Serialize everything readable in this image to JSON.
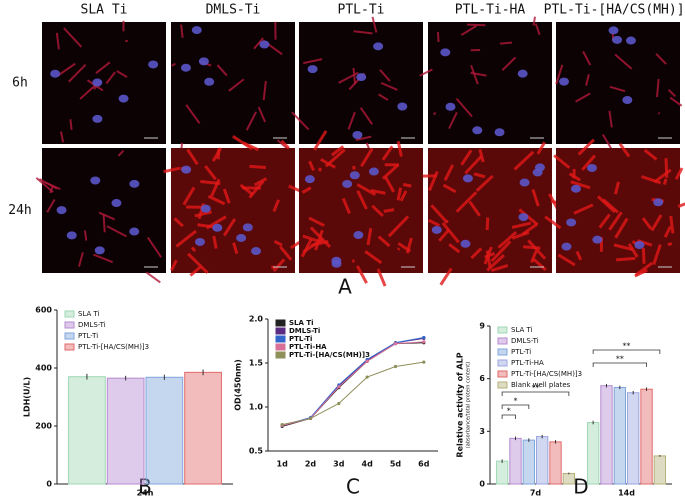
{
  "panel_a": {
    "label": "A",
    "columns": [
      "SLA Ti",
      "DMLS-Ti",
      "PTL-Ti",
      "PTL-Ti-HA",
      "PTL-Ti-[HA/CS(MH)]3"
    ],
    "rows": [
      "6h",
      "24h"
    ]
  },
  "chart_data": [
    {
      "type": "bar",
      "panel": "B",
      "ylabel": "LDH(U/L)",
      "categories": [
        "24h"
      ],
      "ylim": [
        0,
        600
      ],
      "yticks": [
        0,
        200,
        400,
        600
      ],
      "legend": "top-left",
      "series": [
        {
          "name": "SLA Ti",
          "color": "#9fd8b4",
          "values": [
            370
          ],
          "errors": [
            10
          ]
        },
        {
          "name": "DMLS-Ti",
          "color": "#b68ad0",
          "values": [
            365
          ],
          "errors": [
            8
          ]
        },
        {
          "name": "PTL-Ti",
          "color": "#7fa6dc",
          "values": [
            368
          ],
          "errors": [
            9
          ]
        },
        {
          "name": "PTL-Ti-[HA/CS(MH)]3",
          "color": "#e26a6a",
          "values": [
            385
          ],
          "errors": [
            10
          ]
        }
      ]
    },
    {
      "type": "line",
      "panel": "C",
      "ylabel": "OD(450nm)",
      "categories": [
        "1d",
        "2d",
        "3d",
        "4d",
        "5d",
        "6d"
      ],
      "ylim": [
        0.5,
        2.0
      ],
      "yticks": [
        {
          "value": 0.5,
          "label": "0.5"
        },
        {
          "value": 1.0,
          "label": "1.0"
        },
        {
          "value": 1.5,
          "label": "1.5"
        },
        {
          "value": 2.0,
          "label": "2.0"
        }
      ],
      "legend": "top-left",
      "series": [
        {
          "name": "SLA Ti",
          "color": "#222222",
          "values": [
            0.78,
            0.87,
            1.22,
            1.52,
            1.72,
            1.73
          ]
        },
        {
          "name": "DMLS-Ti",
          "color": "#5b2c83",
          "values": [
            0.79,
            0.87,
            1.24,
            1.53,
            1.73,
            1.78
          ]
        },
        {
          "name": "PTL-Ti",
          "color": "#3366cc",
          "values": [
            0.79,
            0.88,
            1.25,
            1.54,
            1.73,
            1.79
          ]
        },
        {
          "name": "PTL-Ti-HA",
          "color": "#d9709a",
          "values": [
            0.79,
            0.87,
            1.23,
            1.52,
            1.72,
            1.74
          ]
        },
        {
          "name": "PTL-Ti-[HA/CS(MH)]3",
          "color": "#8f8f5a",
          "values": [
            0.8,
            0.87,
            1.04,
            1.34,
            1.46,
            1.51
          ]
        }
      ]
    },
    {
      "type": "bar",
      "panel": "D",
      "ylabel": "Relative activity of ALP",
      "ylabel_note": "(absorbance/total protein content)",
      "categories": [
        "7d",
        "14d"
      ],
      "ylim": [
        0,
        9
      ],
      "yticks": [
        0,
        3,
        6,
        9
      ],
      "legend": "top-left",
      "annotations": [
        "*",
        "*",
        "**",
        "**",
        "**"
      ],
      "series": [
        {
          "name": "SLA Ti",
          "color": "#9fd8b4",
          "values": [
            1.3,
            3.5
          ],
          "errors": [
            0.1,
            0.1
          ]
        },
        {
          "name": "DMLS-Ti",
          "color": "#b68ad0",
          "values": [
            2.6,
            5.6
          ],
          "errors": [
            0.1,
            0.1
          ]
        },
        {
          "name": "PTL-Ti",
          "color": "#7fa6dc",
          "values": [
            2.5,
            5.5
          ],
          "errors": [
            0.1,
            0.1
          ]
        },
        {
          "name": "PTL-Ti-HA",
          "color": "#9aa6e0",
          "values": [
            2.7,
            5.2
          ],
          "errors": [
            0.1,
            0.1
          ]
        },
        {
          "name": "PTL-Ti-[HA/CS(MH)]3",
          "color": "#e26a6a",
          "values": [
            2.4,
            5.4
          ],
          "errors": [
            0.1,
            0.1
          ]
        },
        {
          "name": "Blank well plates",
          "color": "#b5b07a",
          "values": [
            0.6,
            1.6
          ],
          "errors": [
            0.05,
            0.05
          ]
        }
      ]
    }
  ]
}
